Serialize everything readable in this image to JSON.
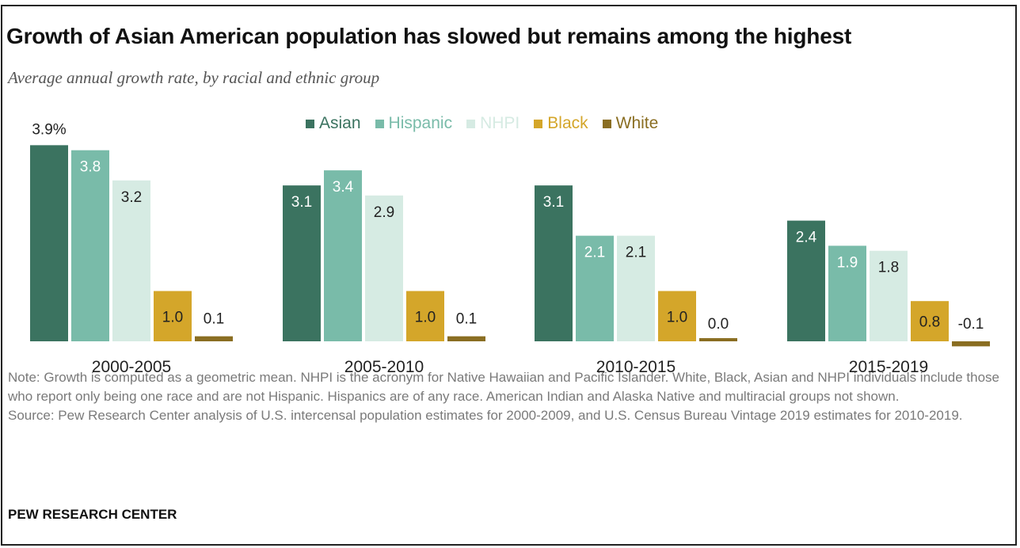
{
  "title": "Growth of Asian American population has slowed but remains among the highest",
  "subtitle": "Average annual growth rate, by racial and ethnic group",
  "colors": {
    "Asian": "#3b7360",
    "Hispanic": "#79bba9",
    "NHPI": "#d6ebe3",
    "Black": "#d4a62a",
    "White": "#8a6e22"
  },
  "label_colors": {
    "Asian": "#ffffff",
    "Hispanic": "#ffffff",
    "NHPI": "#222222",
    "Black": "#222222",
    "White": "#222222"
  },
  "note": "Note: Growth is computed as a geometric mean. NHPI is the acronym for Native Hawaiian and Pacific Islander. White, Black, Asian and NHPI individuals include those who report only being one race and are not Hispanic. Hispanics are of any race. American Indian and Alaska Native and multiracial groups not shown.",
  "source": "Source: Pew Research Center analysis of U.S. intercensal population estimates for 2000-2009, and U.S. Census Bureau Vintage 2019 estimates for 2010-2019.",
  "credit": "PEW RESEARCH CENTER",
  "chart_data": {
    "type": "bar",
    "categories": [
      "2000-2005",
      "2005-2010",
      "2010-2015",
      "2015-2019"
    ],
    "series": [
      {
        "name": "Asian",
        "values": [
          3.9,
          3.1,
          3.1,
          2.4
        ],
        "labels": [
          "3.9%",
          "3.1",
          "3.1",
          "2.4"
        ]
      },
      {
        "name": "Hispanic",
        "values": [
          3.8,
          3.4,
          2.1,
          1.9
        ],
        "labels": [
          "3.8",
          "3.4",
          "2.1",
          "1.9"
        ]
      },
      {
        "name": "NHPI",
        "values": [
          3.2,
          2.9,
          2.1,
          1.8
        ],
        "labels": [
          "3.2",
          "2.9",
          "2.1",
          "1.8"
        ]
      },
      {
        "name": "Black",
        "values": [
          1.0,
          1.0,
          1.0,
          0.8
        ],
        "labels": [
          "1.0",
          "1.0",
          "1.0",
          "0.8"
        ]
      },
      {
        "name": "White",
        "values": [
          0.1,
          0.1,
          0.0,
          -0.1
        ],
        "labels": [
          "0.1",
          "0.1",
          "0.0",
          "-0.1"
        ]
      }
    ],
    "legend_position": "top-center",
    "grid": false
  }
}
